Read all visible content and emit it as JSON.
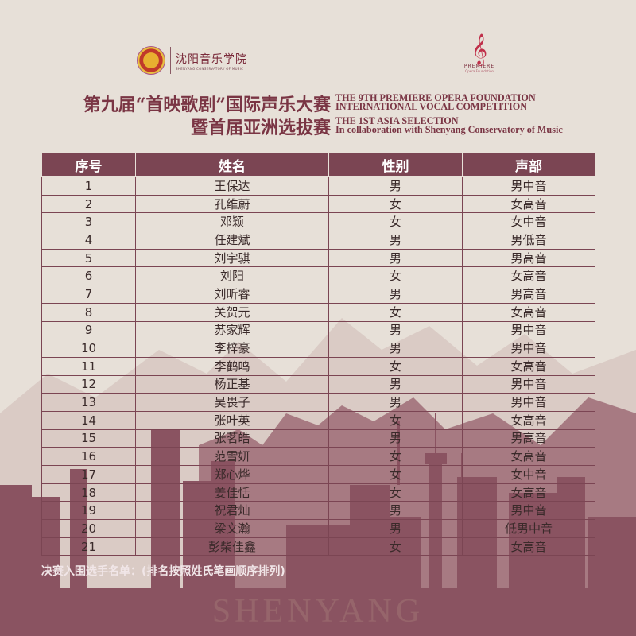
{
  "header": {
    "school_logo_cn": "沈阳音乐学院",
    "school_logo_en": "SHENYANG CONSERVATORY OF MUSIC",
    "foundation_logo": "PREMIERE",
    "foundation_logo_sub": "Opera Foundation",
    "title_cn_line1": "第九届“首映歌剧”国际声乐大赛",
    "title_cn_line2": "暨首届亚洲选拔赛",
    "title_en_line1": "THE 9TH PREMIERE OPERA FOUNDATION",
    "title_en_line2": "INTERNATIONAL VOCAL COMPETITION",
    "title_en_line3": "THE 1ST ASIA SELECTION",
    "title_en_line4": "In collaboration with Shenyang Conservatory of Music"
  },
  "table": {
    "columns": [
      "序号",
      "姓名",
      "性别",
      "声部"
    ],
    "rows": [
      [
        "1",
        "王保达",
        "男",
        "男中音"
      ],
      [
        "2",
        "孔维蔚",
        "女",
        "女高音"
      ],
      [
        "3",
        "邓颖",
        "女",
        "女中音"
      ],
      [
        "4",
        "任建斌",
        "男",
        "男低音"
      ],
      [
        "5",
        "刘宇骐",
        "男",
        "男高音"
      ],
      [
        "6",
        "刘阳",
        "女",
        "女高音"
      ],
      [
        "7",
        "刘昕睿",
        "男",
        "男高音"
      ],
      [
        "8",
        "关贺元",
        "女",
        "女高音"
      ],
      [
        "9",
        "苏家辉",
        "男",
        "男中音"
      ],
      [
        "10",
        "李梓豪",
        "男",
        "男中音"
      ],
      [
        "11",
        "李鹤鸣",
        "女",
        "女高音"
      ],
      [
        "12",
        "杨正基",
        "男",
        "男中音"
      ],
      [
        "13",
        "吴畏子",
        "男",
        "男中音"
      ],
      [
        "14",
        "张叶英",
        "女",
        "女高音"
      ],
      [
        "15",
        "张茗皓",
        "男",
        "男高音"
      ],
      [
        "16",
        "范雪妍",
        "女",
        "女高音"
      ],
      [
        "17",
        "郑心烨",
        "女",
        "女中音"
      ],
      [
        "18",
        "姜佳恬",
        "女",
        "女高音"
      ],
      [
        "19",
        "祝君灿",
        "男",
        "男中音"
      ],
      [
        "20",
        "梁文瀚",
        "男",
        "低男中音"
      ],
      [
        "21",
        "彭柴佳鑫",
        "女",
        "女高音"
      ]
    ]
  },
  "footer": {
    "note": "决赛入围选手名单：(排名按照姓氏笔画顺序排列)",
    "city": "SHENYANG"
  },
  "colors": {
    "accent": "#7b4553",
    "background": "#e7e0d8",
    "skyline": "#8a5361"
  }
}
